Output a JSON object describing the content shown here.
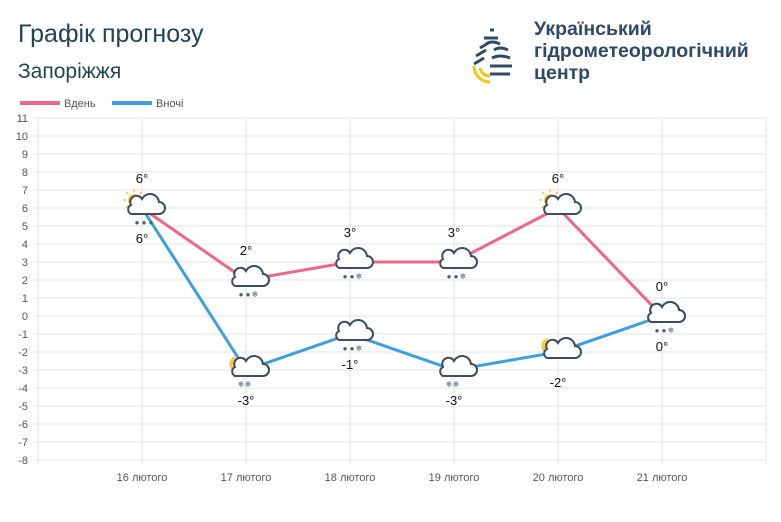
{
  "header": {
    "title": "Графік прогнозу",
    "city": "Запоріжжя"
  },
  "logo": {
    "line1": "Український",
    "line2": "гідрометеорологічний",
    "line3": "центр"
  },
  "colors": {
    "day": "#f0668a",
    "night": "#3d9fe0",
    "grid": "#e3e3e3",
    "text": "#555555"
  },
  "chart_data": {
    "type": "line",
    "title": "Графік прогнозу",
    "categories": [
      "16 лютого",
      "17 лютого",
      "18 лютого",
      "19 лютого",
      "20 лютого",
      "21 лютого"
    ],
    "legend": {
      "position": "top-left",
      "entries": [
        "Вдень",
        "Вночі"
      ]
    },
    "ylim": [
      -8,
      11
    ],
    "yticks": [
      11,
      10,
      9,
      8,
      7,
      6,
      5,
      4,
      3,
      2,
      1,
      0,
      -1,
      -2,
      -3,
      -4,
      -5,
      -6,
      -7,
      -8
    ],
    "grid": true,
    "series": [
      {
        "name": "Вдень",
        "values": [
          6,
          2,
          3,
          3,
          6,
          0
        ],
        "labels": [
          "6°",
          "2°",
          "3°",
          "3°",
          "6°",
          "0°"
        ],
        "icons": [
          "sun-cloud-rain",
          "cloud-rain-snow",
          "cloud-rain-snow",
          "cloud-rain-snow",
          "sun-cloud",
          "cloud-rain-snow"
        ]
      },
      {
        "name": "Вночі",
        "values": [
          6,
          -3,
          -1,
          -3,
          -2,
          0
        ],
        "labels": [
          "6°",
          "-3°",
          "-1°",
          "-3°",
          "-2°",
          "0°"
        ],
        "icons": [
          "cloud",
          "moon-cloud-snow",
          "cloud-rain-snow",
          "cloud-snow",
          "moon-cloud",
          "cloud"
        ]
      }
    ]
  }
}
